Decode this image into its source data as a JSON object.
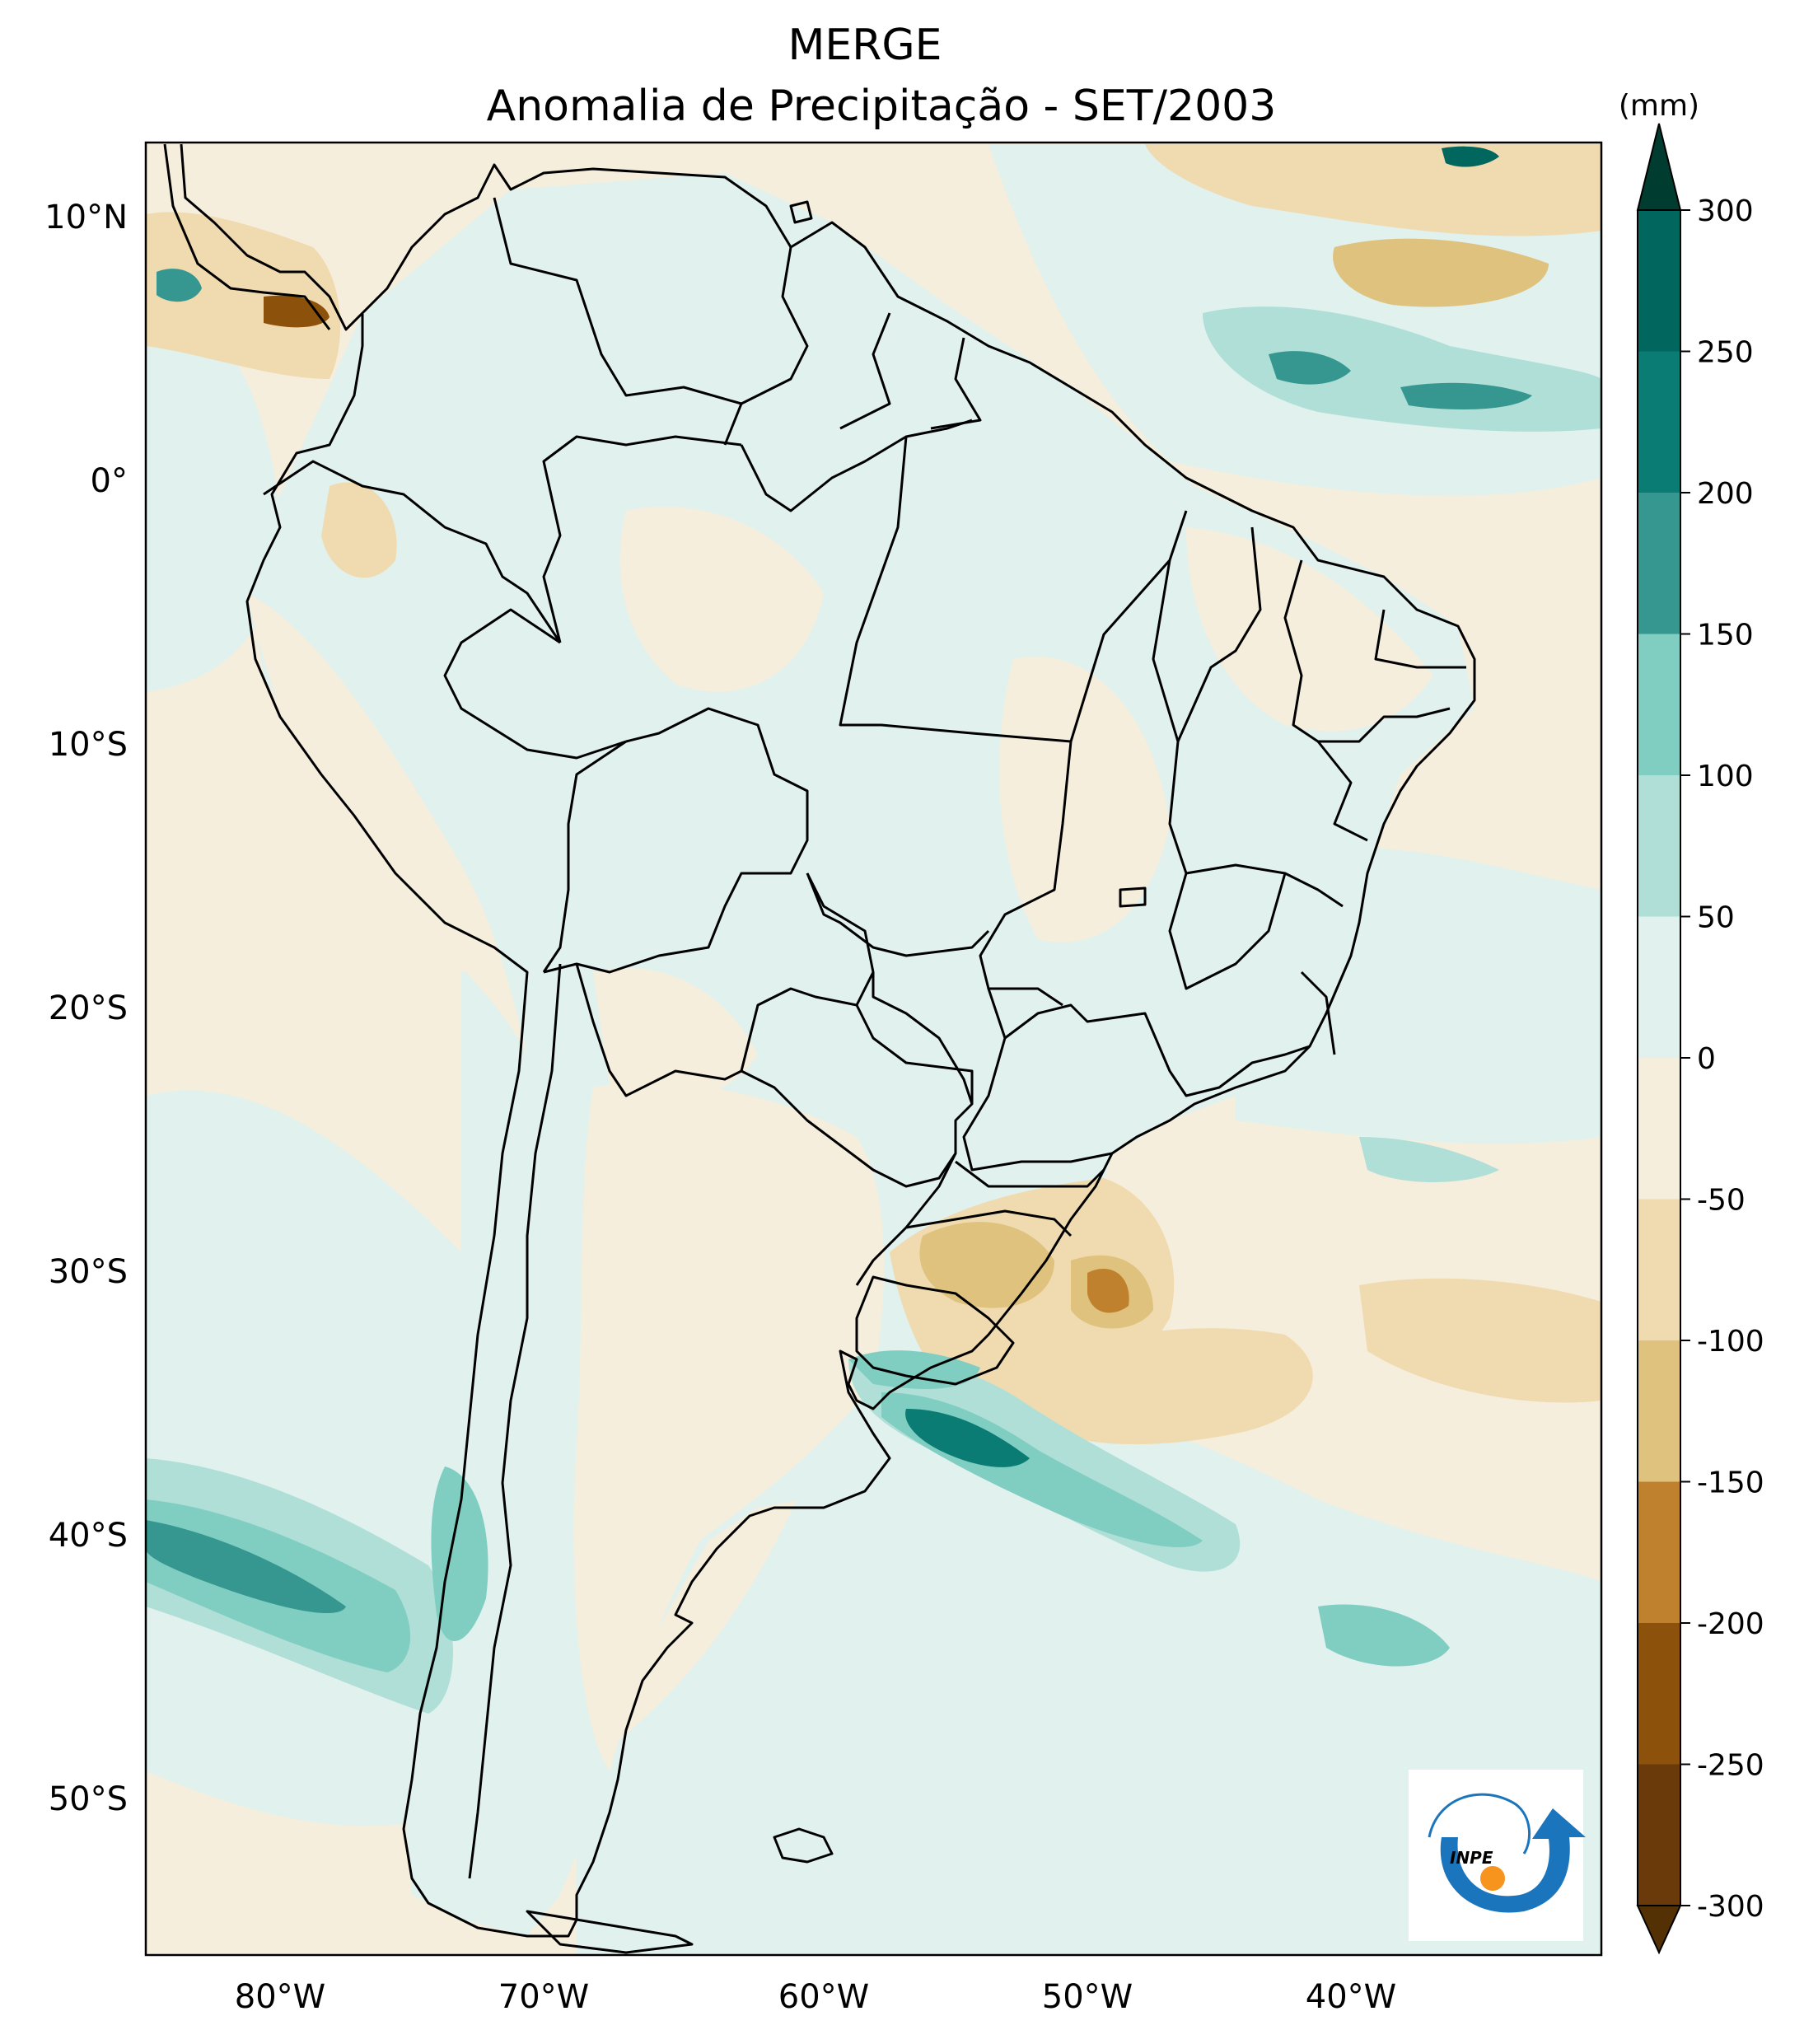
{
  "title": "MERGE",
  "subtitle": "Anomalia de Precipitação - SET/2003",
  "unit": "(mm)",
  "logo_text": "INPE",
  "lat_labels": [
    "10°N",
    "0°",
    "10°S",
    "20°S",
    "30°S",
    "40°S",
    "50°S"
  ],
  "lon_labels": [
    "80°W",
    "70°W",
    "60°W",
    "50°W",
    "40°W"
  ],
  "colorbar": {
    "ticks": [
      "300",
      "250",
      "200",
      "150",
      "100",
      "50",
      "0",
      "-50",
      "-100",
      "-150",
      "-200",
      "-250",
      "-300"
    ],
    "colors": [
      "#003c30",
      "#01665e",
      "#0b7c73",
      "#35978f",
      "#80cdc1",
      "#b0dfd8",
      "#e0f1ee",
      "#f6eedd",
      "#f0dbb0",
      "#dfc27d",
      "#bf812d",
      "#8c510a",
      "#543005"
    ]
  },
  "chart_data": {
    "type": "heatmap",
    "title": "MERGE",
    "subtitle": "Anomalia de Precipitação - SET/2003",
    "variable": "precipitation anomaly",
    "units": "mm",
    "levels": [
      -300,
      -250,
      -200,
      -150,
      -100,
      -50,
      0,
      50,
      100,
      150,
      200,
      250,
      300
    ],
    "lon_range": [
      -85,
      -30
    ],
    "lat_range": [
      -56,
      13
    ],
    "features": [
      {
        "name": "positive anomaly band off Argentina/Uruguay coast",
        "lon": [
          -56,
          -46
        ],
        "lat": [
          -36,
          -40
        ],
        "value": 200
      },
      {
        "name": "positive anomaly band over SE Pacific / southern Chile",
        "lon": [
          -85,
          -74
        ],
        "lat": [
          -39,
          -46
        ],
        "value": 150
      },
      {
        "name": "negative anomaly southern Brazil and adjacent Atlantic",
        "lon": [
          -56,
          -46
        ],
        "lat": [
          -27,
          -35
        ],
        "value": -150
      },
      {
        "name": "positive anomaly tropical Atlantic near 5°N",
        "lon": [
          -40,
          -31
        ],
        "lat": [
          3,
          7
        ],
        "value": 150
      },
      {
        "name": "negative anomaly tropical Atlantic near 8°N",
        "lon": [
          -40,
          -30
        ],
        "lat": [
          7,
          12
        ],
        "value": -100
      },
      {
        "name": "mixed anomalies near Panama",
        "lon": [
          -85,
          -77
        ],
        "lat": [
          5,
          9
        ],
        "value": -200
      }
    ]
  }
}
